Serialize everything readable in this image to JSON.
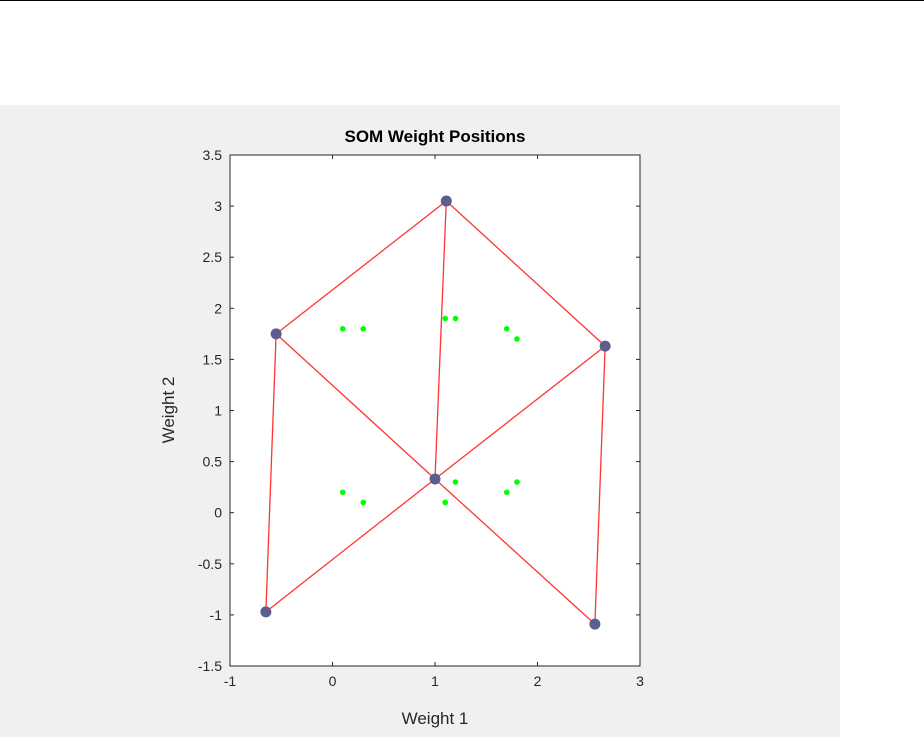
{
  "chart_data": {
    "type": "scatter",
    "title": "SOM Weight Positions",
    "xlabel": "Weight 1",
    "ylabel": "Weight 2",
    "xlim": [
      -1,
      3
    ],
    "ylim": [
      -1.5,
      3.5
    ],
    "xticks": [
      "-1",
      "0",
      "1",
      "2",
      "3"
    ],
    "yticks": [
      "-1.5",
      "-1",
      "-0.5",
      "0",
      "0.5",
      "1",
      "1.5",
      "2",
      "2.5",
      "3",
      "3.5"
    ],
    "grid": false,
    "neurons": [
      [
        -0.65,
        -0.97
      ],
      [
        -0.55,
        1.75
      ],
      [
        1.11,
        3.05
      ],
      [
        1.0,
        0.33
      ],
      [
        2.66,
        1.63
      ],
      [
        2.56,
        -1.09
      ]
    ],
    "edges": [
      [
        0,
        1
      ],
      [
        1,
        2
      ],
      [
        2,
        4
      ],
      [
        4,
        5
      ],
      [
        2,
        3
      ],
      [
        1,
        3
      ],
      [
        3,
        5
      ],
      [
        0,
        3
      ],
      [
        3,
        4
      ]
    ],
    "data_points": [
      [
        0.1,
        1.8
      ],
      [
        0.3,
        1.8
      ],
      [
        1.1,
        1.9
      ],
      [
        1.2,
        1.9
      ],
      [
        1.7,
        1.8
      ],
      [
        1.8,
        1.7
      ],
      [
        0.1,
        0.2
      ],
      [
        0.3,
        0.1
      ],
      [
        1.1,
        0.1
      ],
      [
        1.2,
        0.3
      ],
      [
        1.7,
        0.2
      ],
      [
        1.8,
        0.3
      ]
    ],
    "colors": {
      "neuron": "#5a5f8f",
      "edge": "#ff3333",
      "data": "#00ff00"
    }
  }
}
